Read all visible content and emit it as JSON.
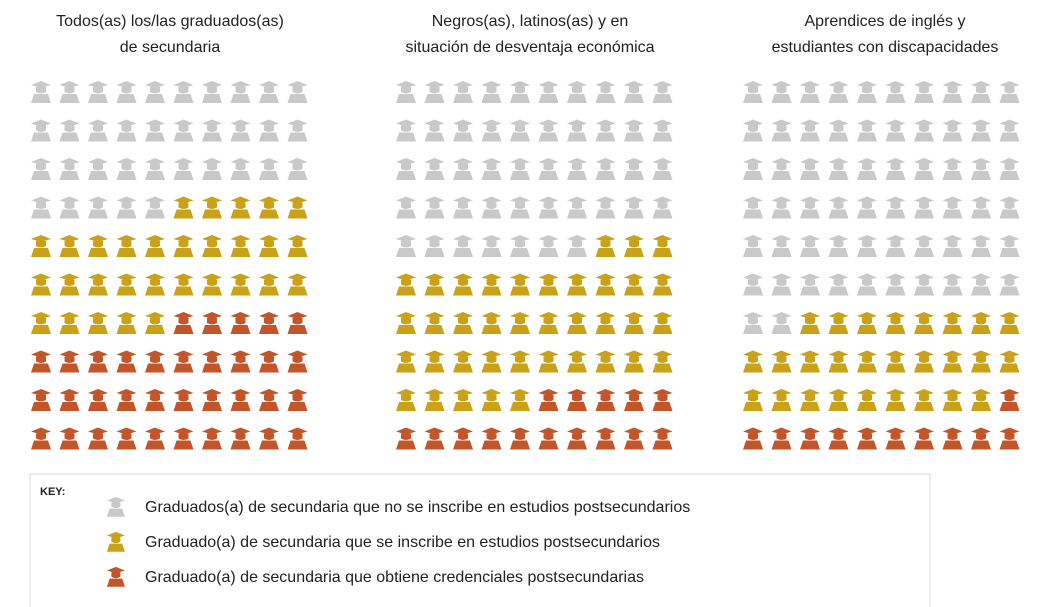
{
  "chart_data": {
    "type": "waffle",
    "categories": [
      [
        "Todos(as) los/las graduados(as)",
        "de secundaria"
      ],
      [
        "Negros(as), latinos(as) y en",
        "situación de desventaja económica"
      ],
      [
        "Aprendices de inglés y",
        "estudiantes con discapacidades"
      ]
    ],
    "legend_title": "KEY:",
    "series": [
      {
        "name": "Graduados(a) de secundaria que no se inscribe en estudios postsecundarios",
        "color": "#c9c9c9",
        "values": [
          35,
          47,
          62
        ]
      },
      {
        "name": "Graduado(a) de secundaria que se inscribe en estudios postsecundarios",
        "color": "#c9a21a",
        "values": [
          30,
          38,
          27
        ]
      },
      {
        "name": "Graduado(a) de secundaria que obtiene credenciales postsecundarias",
        "color": "#c2562a",
        "values": [
          35,
          15,
          11
        ]
      }
    ]
  }
}
